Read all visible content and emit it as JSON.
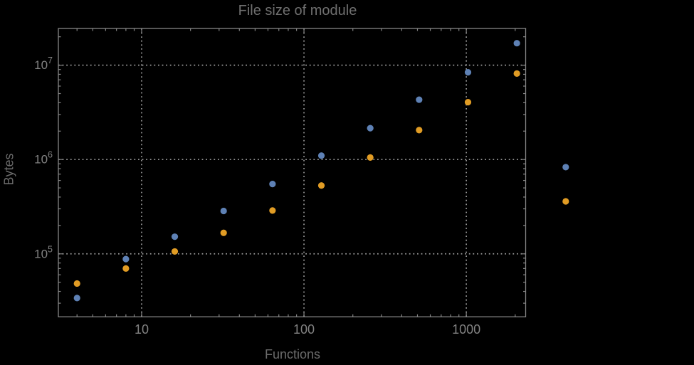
{
  "chart_data": {
    "type": "scatter",
    "title": "File size of module",
    "xlabel": "Functions",
    "ylabel": "Bytes",
    "x_scale": "log",
    "y_scale": "log",
    "grid": "dotted-major-decades",
    "legend": "none",
    "xlim": [
      3.07,
      2320
    ],
    "ylim": [
      21500,
      24500000
    ],
    "x_ticks": [
      {
        "value": 10,
        "label": "10"
      },
      {
        "value": 100,
        "label": "100"
      },
      {
        "value": 1000,
        "label": "1000"
      }
    ],
    "y_ticks": [
      {
        "value": 100000,
        "mantissa": "10",
        "exponent": "5"
      },
      {
        "value": 1000000,
        "mantissa": "10",
        "exponent": "6"
      },
      {
        "value": 10000000,
        "mantissa": "10",
        "exponent": "7"
      }
    ],
    "x": [
      4,
      8,
      16,
      32,
      64,
      128,
      256,
      512,
      1024,
      2048,
      4096
    ],
    "series": [
      {
        "name": "series-blue",
        "color": "#5E81B5",
        "values": [
          34000,
          88000,
          152000,
          285000,
          550000,
          1100000,
          2150000,
          4310000,
          8400000,
          17100000,
          830000
        ]
      },
      {
        "name": "series-orange",
        "color": "#E19C24",
        "values": [
          48500,
          70000,
          106000,
          167000,
          288000,
          530000,
          1050000,
          2050000,
          4050000,
          8150000,
          360000
        ]
      }
    ],
    "frame_color": "#868686",
    "grid_color": "#9a9a9a",
    "text_color": "#828282"
  }
}
